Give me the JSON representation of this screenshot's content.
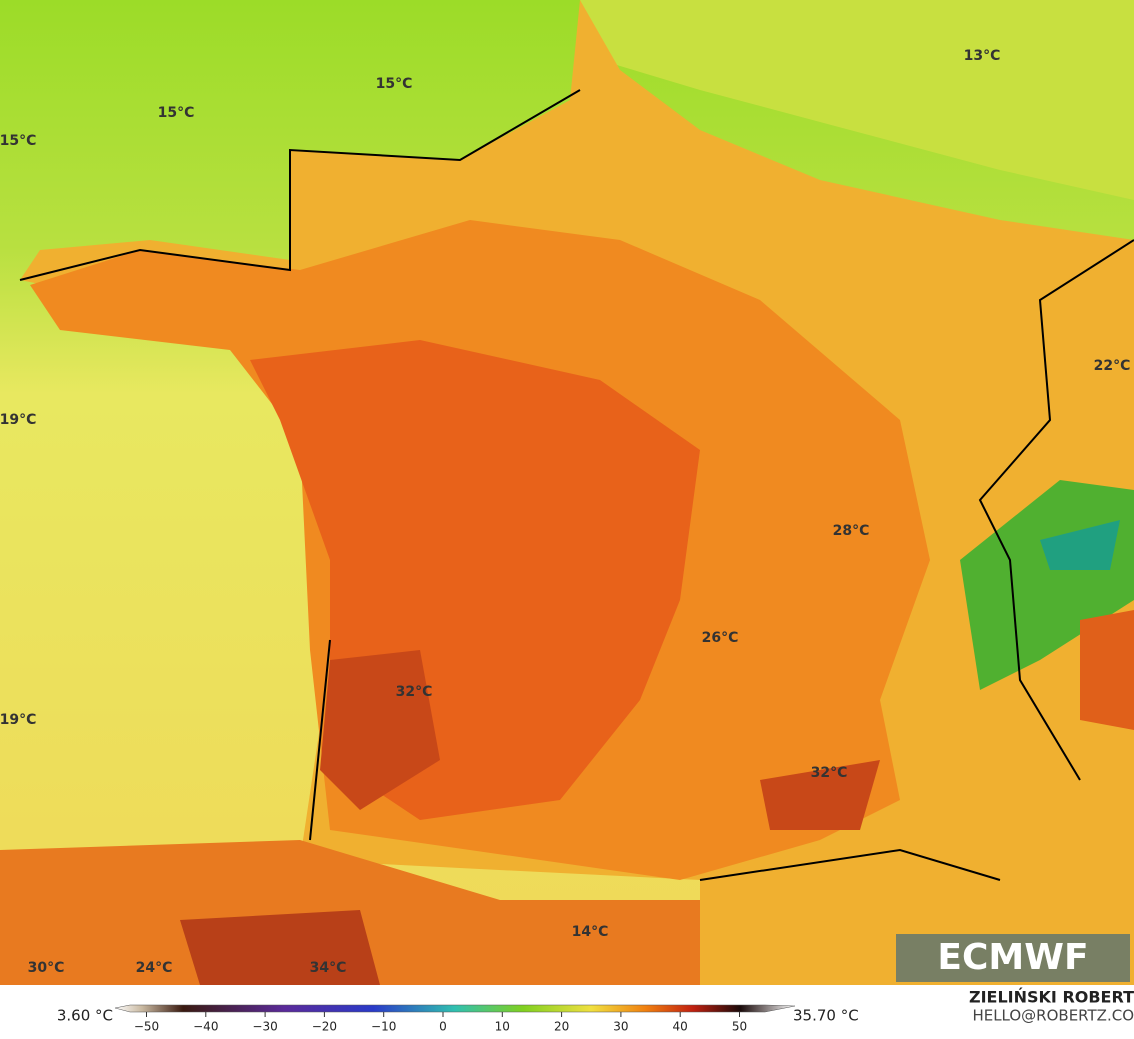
{
  "map": {
    "labels": [
      "15°C",
      "15°C",
      "15°C",
      "13°C",
      "22°C",
      "19°C",
      "28°C",
      "26°C",
      "32°C",
      "19°C",
      "32°C",
      "14°C",
      "30°C",
      "24°C",
      "34°C"
    ],
    "brand": "ECMWF"
  },
  "colorbar": {
    "min_label": "3.60 °C",
    "max_label": "35.70 °C",
    "ticks": [
      {
        "value": -50,
        "label": "−50"
      },
      {
        "value": -40,
        "label": "−40"
      },
      {
        "value": -30,
        "label": "−30"
      },
      {
        "value": -20,
        "label": "−20"
      },
      {
        "value": -10,
        "label": "−10"
      },
      0,
      10,
      20,
      30,
      40,
      50
    ]
  },
  "credit": {
    "name": "ZIELIŃSKI ROBERT",
    "email": "HELLO@ROBERTZ.CO"
  }
}
